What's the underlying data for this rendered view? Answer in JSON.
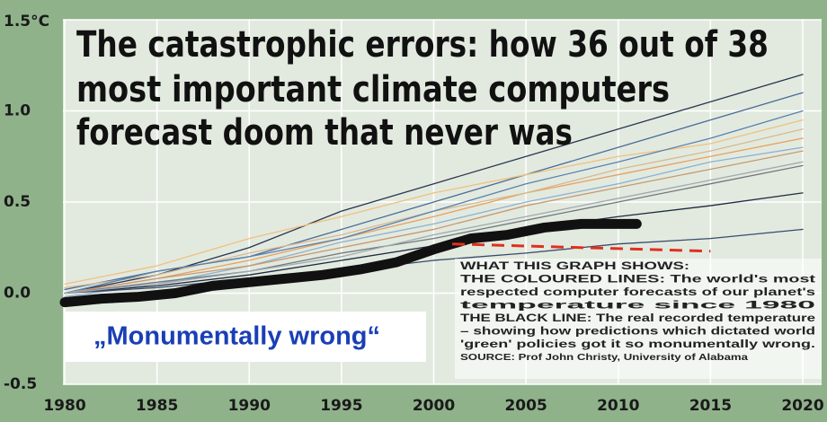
{
  "chart_data": {
    "type": "line",
    "title_lines": [
      "The catastrophic errors: how 36 out of 38",
      "most important climate computers",
      "forecast doom that never was"
    ],
    "xlim": [
      1980,
      2020
    ],
    "xticks": [
      1980,
      1985,
      1990,
      1995,
      2000,
      2005,
      2010,
      2015,
      2020
    ],
    "ylim": [
      -0.5,
      1.5
    ],
    "yticks": [
      {
        "value": -0.5,
        "label": "-0.5"
      },
      {
        "value": 0,
        "label": "0.0"
      },
      0.5,
      {
        "value": 1,
        "label": "1.0"
      },
      {
        "value": 1.5,
        "label": "1.5°C"
      }
    ],
    "grid": true,
    "series": [
      {
        "color": "#2a3550",
        "width": 1.3,
        "x": [
          1980,
          1985,
          1990,
          1995,
          2000,
          2005,
          2010,
          2015,
          2020
        ],
        "values": [
          0,
          0.1,
          0.25,
          0.45,
          0.6,
          0.75,
          0.9,
          1.05,
          1.2
        ]
      },
      {
        "color": "#4a6a9a",
        "width": 1.3,
        "x": [
          1980,
          1985,
          1990,
          1995,
          2000,
          2005,
          2010,
          2015,
          2020
        ],
        "values": [
          0.02,
          0.12,
          0.2,
          0.35,
          0.5,
          0.65,
          0.8,
          0.95,
          1.1
        ]
      },
      {
        "color": "#e8a060",
        "width": 1.3,
        "x": [
          1980,
          1985,
          1990,
          1995,
          2000,
          2005,
          2010,
          2015,
          2020
        ],
        "values": [
          0,
          0.08,
          0.18,
          0.3,
          0.42,
          0.55,
          0.65,
          0.75,
          0.85
        ]
      },
      {
        "color": "#d8b890",
        "width": 1.3,
        "x": [
          1980,
          1985,
          1990,
          1995,
          2000,
          2005,
          2010,
          2015,
          2020
        ],
        "values": [
          0.03,
          0.1,
          0.22,
          0.32,
          0.45,
          0.55,
          0.68,
          0.78,
          0.9
        ]
      },
      {
        "color": "#90b0d0",
        "width": 1.3,
        "x": [
          1980,
          1985,
          1990,
          1995,
          2000,
          2005,
          2010,
          2015,
          2020
        ],
        "values": [
          -0.02,
          0.05,
          0.15,
          0.28,
          0.38,
          0.5,
          0.6,
          0.72,
          0.8
        ]
      },
      {
        "color": "#707880",
        "width": 1.3,
        "x": [
          1980,
          1985,
          1990,
          1995,
          2000,
          2005,
          2010,
          2015,
          2020
        ],
        "values": [
          0,
          0.06,
          0.12,
          0.22,
          0.3,
          0.4,
          0.5,
          0.6,
          0.7
        ]
      },
      {
        "color": "#1e2a40",
        "width": 1.3,
        "x": [
          1980,
          1985,
          1990,
          1995,
          2000,
          2005,
          2010,
          2015,
          2020
        ],
        "values": [
          0,
          0.04,
          0.1,
          0.18,
          0.26,
          0.35,
          0.42,
          0.48,
          0.55
        ]
      },
      {
        "color": "#3a4a6a",
        "width": 1.3,
        "x": [
          1980,
          1985,
          1990,
          1995,
          2000,
          2005,
          2010,
          2015,
          2020
        ],
        "values": [
          0,
          0.03,
          0.08,
          0.12,
          0.18,
          0.22,
          0.27,
          0.3,
          0.35
        ]
      },
      {
        "color": "#f0c080",
        "width": 1.3,
        "x": [
          1980,
          1985,
          1990,
          1995,
          2000,
          2005,
          2010,
          2015,
          2020
        ],
        "values": [
          0.05,
          0.15,
          0.3,
          0.42,
          0.55,
          0.65,
          0.75,
          0.82,
          0.95
        ]
      },
      {
        "color": "#5a80b0",
        "width": 1.3,
        "x": [
          1980,
          1985,
          1990,
          1995,
          2000,
          2005,
          2010,
          2015,
          2020
        ],
        "values": [
          0,
          0.12,
          0.2,
          0.3,
          0.45,
          0.6,
          0.72,
          0.85,
          1.0
        ]
      },
      {
        "color": "#c89870",
        "width": 1.3,
        "x": [
          1980,
          1985,
          1990,
          1995,
          2000,
          2005,
          2010,
          2015,
          2020
        ],
        "values": [
          0,
          0.08,
          0.15,
          0.25,
          0.35,
          0.48,
          0.58,
          0.68,
          0.78
        ]
      },
      {
        "color": "#a0a8b0",
        "width": 1.3,
        "x": [
          1980,
          1985,
          1990,
          1995,
          2000,
          2005,
          2010,
          2015,
          2020
        ],
        "values": [
          0,
          0.05,
          0.12,
          0.2,
          0.32,
          0.42,
          0.52,
          0.62,
          0.72
        ]
      },
      {
        "color": "#111111",
        "width": 11,
        "x": [
          1980,
          1982,
          1984,
          1986,
          1988,
          1990,
          1992,
          1994,
          1996,
          1998,
          2000,
          2002,
          2004,
          2006,
          2008,
          2010,
          2011
        ],
        "values": [
          -0.05,
          -0.03,
          -0.02,
          0,
          0.04,
          0.06,
          0.08,
          0.1,
          0.13,
          0.17,
          0.24,
          0.3,
          0.32,
          0.36,
          0.38,
          0.38,
          0.38
        ]
      },
      {
        "color": "#e0301e",
        "width": 3,
        "dash": true,
        "x": [
          2001,
          2015
        ],
        "values": [
          0.27,
          0.23
        ]
      }
    ],
    "callout": "„Monumentally wrong“",
    "note_lines": [
      "WHAT THIS GRAPH SHOWS:",
      "THE COLOURED LINES: The world's most",
      "respected computer forecasts of our planet's",
      "temperature since 1980",
      "THE BLACK LINE: The real recorded temperature",
      "– showing how predictions which dictated world",
      "'green' policies got it so monumentally wrong.",
      "SOURCE: Prof John Christy, University of Alabama"
    ]
  }
}
